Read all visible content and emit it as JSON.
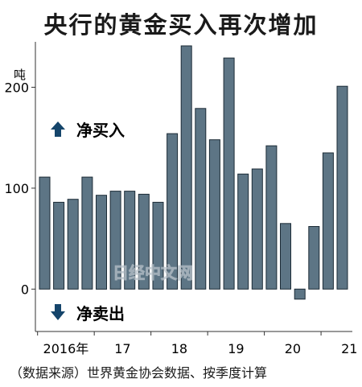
{
  "chart_data": {
    "type": "bar",
    "title": "央行的黄金买入再次增加",
    "ylabel": "吨",
    "ylim": [
      -42,
      245
    ],
    "yticks": [
      0,
      100,
      200
    ],
    "xtick_labels": [
      "2016年",
      "17",
      "18",
      "19",
      "20",
      "21"
    ],
    "annotation_up": "净买入",
    "annotation_down": "净卖出",
    "watermark": "日经中文网",
    "bar_color": "#5d7585",
    "values": [
      111,
      86,
      89,
      111,
      93,
      97,
      97,
      94,
      86,
      154,
      241,
      179,
      148,
      229,
      114,
      119,
      142,
      65,
      -10,
      62,
      135,
      201
    ]
  },
  "source": "（数据来源）世界黄金协会数据、按季度计算"
}
